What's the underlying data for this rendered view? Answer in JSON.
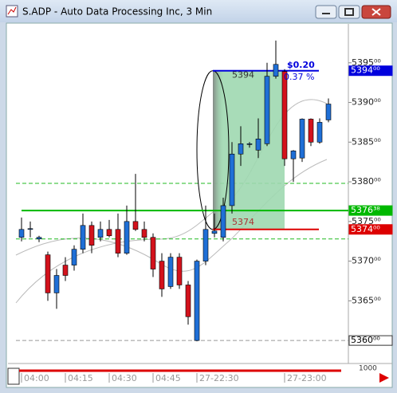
{
  "window_title": "S.ADP - Auto Data Processing Inc, 3 Min",
  "chart_data": {
    "type": "candlestick",
    "categories": [
      "04:00",
      null,
      null,
      null,
      null,
      "04:15",
      null,
      null,
      null,
      null,
      "04:30",
      null,
      null,
      null,
      null,
      "04:45",
      null,
      null,
      null,
      null,
      "27-22:30",
      null,
      null,
      null,
      null,
      null,
      null,
      null,
      null,
      null,
      "27-23:00",
      null,
      null,
      null,
      null,
      null
    ],
    "open": [
      5373,
      5374,
      5372.8,
      5370.8,
      5366,
      5369.5,
      5369.5,
      5371.5,
      5374.5,
      5373,
      5374,
      5374,
      5371,
      5375,
      5374,
      5373,
      5370,
      5366.8,
      5370.5,
      5367,
      5360,
      5370,
      5373.5,
      5373,
      5377,
      5383.5,
      5384.7,
      5384,
      5384.8,
      5393.3,
      5393.9,
      5382.9,
      5383,
      5387.9,
      5385,
      5387.8
    ],
    "high": [
      5375.5,
      5375,
      5373.2,
      5371.2,
      5369,
      5370.5,
      5372,
      5376,
      5375,
      5375,
      5375.2,
      5376,
      5377,
      5381,
      5375,
      5373.5,
      5371,
      5371,
      5371,
      5367.5,
      5370.2,
      5377,
      5376,
      5378,
      5385,
      5387,
      5385,
      5388,
      5395,
      5397.8,
      5394.2,
      5384,
      5388,
      5388,
      5388,
      5390.5
    ],
    "low": [
      5372.5,
      5373,
      5372.4,
      5365,
      5364,
      5367.5,
      5368.8,
      5371,
      5371,
      5372.5,
      5373,
      5370.5,
      5370.8,
      5373.8,
      5372.5,
      5368,
      5365.5,
      5366.5,
      5366.5,
      5362,
      5359.9,
      5369.5,
      5373,
      5372.5,
      5376,
      5382,
      5384.3,
      5383,
      5384.5,
      5393,
      5382,
      5380,
      5382.5,
      5384.5,
      5384.8,
      5387.5
    ],
    "close": [
      5374,
      5374.1,
      5373,
      5366,
      5368.2,
      5368.2,
      5371.5,
      5374.5,
      5372,
      5374,
      5373.2,
      5371,
      5375,
      5374,
      5373,
      5369,
      5366.5,
      5370.5,
      5367,
      5363,
      5370,
      5374,
      5373.8,
      5377,
      5383.5,
      5384.8,
      5384.8,
      5385.4,
      5393.3,
      5394.8,
      5382.9,
      5383.9,
      5387.9,
      5385,
      5387.5,
      5389.8
    ],
    "up_color": "#1f6fd6",
    "down_color": "#d3121c",
    "ylim": [
      5357.2,
      5399.9
    ],
    "yticks": [
      {
        "value": 5365,
        "label": "5365⁰⁰"
      },
      {
        "value": 5370,
        "label": "5370⁰⁰"
      },
      {
        "value": 5375,
        "label": "5375⁰⁰"
      },
      {
        "value": 5380,
        "label": "5380⁰⁰"
      },
      {
        "value": 5385,
        "label": "5385⁰⁰"
      },
      {
        "value": 5390,
        "label": "5390⁰⁰"
      },
      {
        "value": 5395,
        "label": "5395⁰⁰"
      }
    ],
    "levels": [
      {
        "value": 5394,
        "label": "5394⁰⁰",
        "color": "#0000dd"
      },
      {
        "value": 5376.38,
        "label": "5376³⁸",
        "color": "#00b800"
      },
      {
        "value": 5374,
        "label": "5374⁰⁰",
        "color": "#dd0000"
      },
      {
        "value": 5360,
        "label": "5360⁰⁰",
        "color": "#999999"
      }
    ],
    "dashed_levels": [
      5379.8,
      5372.8
    ],
    "annotations": [
      "5394",
      "5374",
      "$0.20",
      "0.37 %"
    ],
    "zoom": "1000"
  }
}
